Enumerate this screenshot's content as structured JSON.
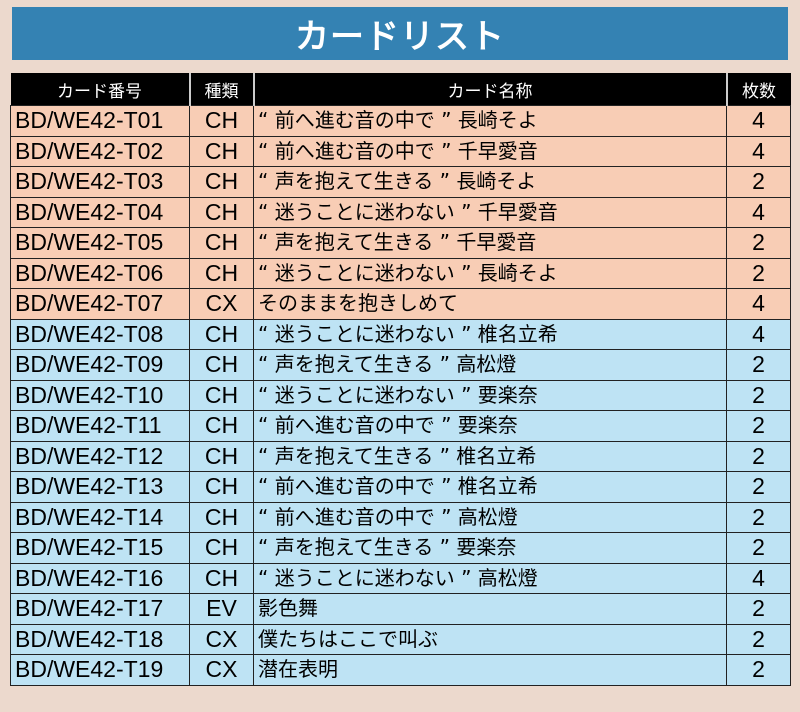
{
  "title": "カードリスト",
  "headers": [
    "カード番号",
    "種類",
    "カード名称",
    "枚数"
  ],
  "colors": {
    "title_bar": "#3482b3",
    "group_a": "#f8cdb5",
    "group_b": "#bee3f4",
    "header": "#000000"
  },
  "rows": [
    {
      "no": "BD/WE42-T01",
      "type": "CH",
      "name": "“ 前へ進む音の中で ” 長崎そよ",
      "count": "4",
      "group": "a"
    },
    {
      "no": "BD/WE42-T02",
      "type": "CH",
      "name": "“ 前へ進む音の中で ” 千早愛音",
      "count": "4",
      "group": "a"
    },
    {
      "no": "BD/WE42-T03",
      "type": "CH",
      "name": "“ 声を抱えて生きる ” 長崎そよ",
      "count": "2",
      "group": "a"
    },
    {
      "no": "BD/WE42-T04",
      "type": "CH",
      "name": "“ 迷うことに迷わない ” 千早愛音",
      "count": "4",
      "group": "a"
    },
    {
      "no": "BD/WE42-T05",
      "type": "CH",
      "name": "“ 声を抱えて生きる ” 千早愛音",
      "count": "2",
      "group": "a"
    },
    {
      "no": "BD/WE42-T06",
      "type": "CH",
      "name": "“ 迷うことに迷わない ” 長崎そよ",
      "count": "2",
      "group": "a"
    },
    {
      "no": "BD/WE42-T07",
      "type": "CX",
      "name": "そのままを抱きしめて",
      "count": "4",
      "group": "a"
    },
    {
      "no": "BD/WE42-T08",
      "type": "CH",
      "name": "“ 迷うことに迷わない ” 椎名立希",
      "count": "4",
      "group": "b"
    },
    {
      "no": "BD/WE42-T09",
      "type": "CH",
      "name": "“ 声を抱えて生きる ” 高松燈",
      "count": "2",
      "group": "b"
    },
    {
      "no": "BD/WE42-T10",
      "type": "CH",
      "name": "“ 迷うことに迷わない ” 要楽奈",
      "count": "2",
      "group": "b"
    },
    {
      "no": "BD/WE42-T11",
      "type": "CH",
      "name": "“ 前へ進む音の中で ” 要楽奈",
      "count": "2",
      "group": "b"
    },
    {
      "no": "BD/WE42-T12",
      "type": "CH",
      "name": "“ 声を抱えて生きる ” 椎名立希",
      "count": "2",
      "group": "b"
    },
    {
      "no": "BD/WE42-T13",
      "type": "CH",
      "name": "“ 前へ進む音の中で ” 椎名立希",
      "count": "2",
      "group": "b"
    },
    {
      "no": "BD/WE42-T14",
      "type": "CH",
      "name": "“ 前へ進む音の中で ” 高松燈",
      "count": "2",
      "group": "b"
    },
    {
      "no": "BD/WE42-T15",
      "type": "CH",
      "name": "“ 声を抱えて生きる ” 要楽奈",
      "count": "2",
      "group": "b"
    },
    {
      "no": "BD/WE42-T16",
      "type": "CH",
      "name": "“ 迷うことに迷わない ” 高松燈",
      "count": "4",
      "group": "b"
    },
    {
      "no": "BD/WE42-T17",
      "type": "EV",
      "name": "影色舞",
      "count": "2",
      "group": "b"
    },
    {
      "no": "BD/WE42-T18",
      "type": "CX",
      "name": "僕たちはここで叫ぶ",
      "count": "2",
      "group": "b"
    },
    {
      "no": "BD/WE42-T19",
      "type": "CX",
      "name": "潜在表明",
      "count": "2",
      "group": "b"
    }
  ]
}
